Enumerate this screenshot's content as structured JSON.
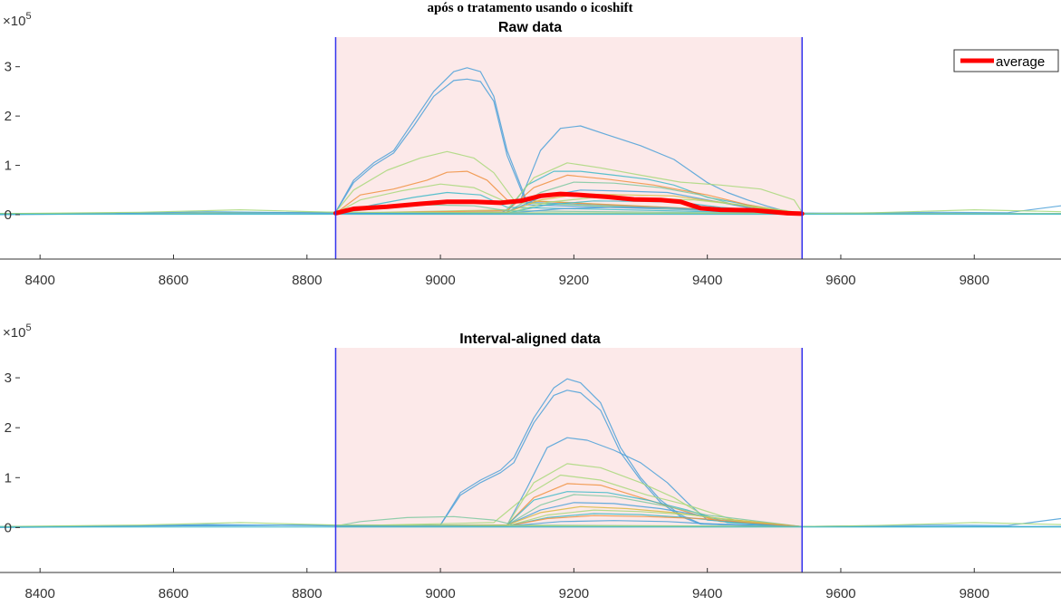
{
  "figure": {
    "suptitle": "após o tratamento usando o icoshift"
  },
  "chart_data": [
    {
      "type": "line",
      "title": "Raw data",
      "xlabel": "",
      "ylabel": "",
      "exponent_base": "×10",
      "exponent_power": "5",
      "xlim": [
        8340,
        9930
      ],
      "ylim": [
        -0.9,
        3.6
      ],
      "xticks": [
        8400,
        8600,
        8800,
        9000,
        9200,
        9400,
        9600,
        9800
      ],
      "yticks": [
        0,
        1,
        2,
        3
      ],
      "highlight_interval": [
        8843,
        9542
      ],
      "legend": {
        "position": "top-right",
        "entries": [
          "average"
        ]
      },
      "series": [
        {
          "name": "average",
          "color": "#ff0000",
          "x": [
            8843,
            8870,
            8920,
            8970,
            9010,
            9050,
            9090,
            9120,
            9150,
            9180,
            9210,
            9250,
            9290,
            9330,
            9360,
            9390,
            9420,
            9470,
            9520,
            9542
          ],
          "y": [
            0.03,
            0.12,
            0.16,
            0.22,
            0.26,
            0.26,
            0.24,
            0.28,
            0.38,
            0.42,
            0.4,
            0.36,
            0.31,
            0.3,
            0.26,
            0.13,
            0.1,
            0.09,
            0.03,
            0.02
          ]
        },
        {
          "color": "#4aa0d8",
          "x": [
            8340,
            8843,
            8870,
            8900,
            8930,
            8960,
            8990,
            9020,
            9040,
            9060,
            9080,
            9100,
            9130,
            9542,
            9930
          ],
          "y": [
            0.02,
            0.05,
            0.7,
            1.05,
            1.3,
            1.9,
            2.5,
            2.9,
            2.98,
            2.9,
            2.4,
            1.3,
            0.25,
            0.03,
            0.02
          ]
        },
        {
          "color": "#4aa0d8",
          "x": [
            8340,
            8843,
            8870,
            8900,
            8930,
            8960,
            8990,
            9020,
            9040,
            9060,
            9080,
            9100,
            9130,
            9542,
            9930
          ],
          "y": [
            0.02,
            0.05,
            0.65,
            1.0,
            1.25,
            1.8,
            2.4,
            2.72,
            2.75,
            2.7,
            2.3,
            1.2,
            0.2,
            0.03,
            0.02
          ]
        },
        {
          "color": "#4aa0d8",
          "x": [
            8340,
            8843,
            9090,
            9120,
            9150,
            9180,
            9210,
            9250,
            9300,
            9350,
            9400,
            9430,
            9460,
            9490,
            9520,
            9542,
            9930
          ],
          "y": [
            0.02,
            0.02,
            0.02,
            0.3,
            1.3,
            1.75,
            1.8,
            1.62,
            1.4,
            1.12,
            0.65,
            0.45,
            0.3,
            0.17,
            0.06,
            0.02,
            0.02
          ]
        },
        {
          "color": "#a8d87a",
          "x": [
            8340,
            8843,
            8870,
            8920,
            8970,
            9010,
            9050,
            9080,
            9110,
            9542,
            9930
          ],
          "y": [
            0.02,
            0.05,
            0.5,
            0.9,
            1.15,
            1.28,
            1.15,
            0.85,
            0.3,
            0.02,
            0.02
          ]
        },
        {
          "color": "#f09040",
          "x": [
            8843,
            8880,
            8930,
            8980,
            9010,
            9040,
            9070,
            9100,
            9542
          ],
          "y": [
            0.03,
            0.4,
            0.52,
            0.7,
            0.86,
            0.88,
            0.7,
            0.3,
            0.02
          ]
        },
        {
          "color": "#3cb8c8",
          "x": [
            8843,
            9100,
            9130,
            9170,
            9210,
            9260,
            9310,
            9350,
            9400,
            9480,
            9542
          ],
          "y": [
            0.03,
            0.05,
            0.6,
            0.88,
            0.88,
            0.8,
            0.72,
            0.6,
            0.35,
            0.15,
            0.02
          ]
        },
        {
          "color": "#a8d87a",
          "x": [
            8843,
            9100,
            9140,
            9190,
            9240,
            9300,
            9360,
            9420,
            9480,
            9530,
            9542
          ],
          "y": [
            0.03,
            0.1,
            0.75,
            1.05,
            0.95,
            0.8,
            0.66,
            0.6,
            0.52,
            0.3,
            0.05
          ]
        },
        {
          "color": "#f09040",
          "x": [
            8843,
            9100,
            9140,
            9190,
            9250,
            9320,
            9400,
            9460,
            9542
          ],
          "y": [
            0.03,
            0.08,
            0.55,
            0.8,
            0.72,
            0.6,
            0.4,
            0.2,
            0.02
          ]
        },
        {
          "color": "#7cc8a0",
          "x": [
            8843,
            9100,
            9150,
            9200,
            9260,
            9330,
            9390,
            9440,
            9542
          ],
          "y": [
            0.03,
            0.05,
            0.45,
            0.66,
            0.64,
            0.55,
            0.4,
            0.2,
            0.02
          ]
        },
        {
          "color": "#a8d87a",
          "x": [
            8843,
            8880,
            8940,
            9000,
            9050,
            9100,
            9542
          ],
          "y": [
            0.03,
            0.3,
            0.48,
            0.62,
            0.55,
            0.25,
            0.02
          ]
        },
        {
          "color": "#3cb8c8",
          "x": [
            8843,
            8900,
            8960,
            9010,
            9060,
            9100,
            9542
          ],
          "y": [
            0.03,
            0.2,
            0.35,
            0.45,
            0.4,
            0.15,
            0.02
          ]
        },
        {
          "color": "#4aa0d8",
          "x": [
            8843,
            9100,
            9150,
            9210,
            9270,
            9340,
            9400,
            9470,
            9542
          ],
          "y": [
            0.03,
            0.05,
            0.35,
            0.5,
            0.48,
            0.45,
            0.3,
            0.12,
            0.02
          ]
        },
        {
          "color": "#d8b840",
          "x": [
            8843,
            9100,
            9150,
            9210,
            9280,
            9350,
            9420,
            9500,
            9542
          ],
          "y": [
            0.03,
            0.05,
            0.3,
            0.42,
            0.4,
            0.38,
            0.25,
            0.1,
            0.02
          ]
        },
        {
          "color": "#a8d87a",
          "x": [
            8843,
            9100,
            9160,
            9230,
            9300,
            9380,
            9450,
            9520,
            9542
          ],
          "y": [
            0.03,
            0.03,
            0.25,
            0.35,
            0.33,
            0.3,
            0.2,
            0.08,
            0.02
          ]
        },
        {
          "color": "#3cb8c8",
          "x": [
            8843,
            9100,
            9160,
            9230,
            9300,
            9360,
            9420,
            9542
          ],
          "y": [
            0.03,
            0.03,
            0.2,
            0.28,
            0.27,
            0.25,
            0.15,
            0.02
          ]
        },
        {
          "color": "#7cc8a0",
          "x": [
            8843,
            8900,
            8980,
            9050,
            9100,
            9542
          ],
          "y": [
            0.03,
            0.12,
            0.2,
            0.18,
            0.08,
            0.02
          ]
        },
        {
          "color": "#4aa0d8",
          "x": [
            8843,
            9100,
            9180,
            9260,
            9340,
            9420,
            9542
          ],
          "y": [
            0.03,
            0.03,
            0.12,
            0.15,
            0.14,
            0.08,
            0.02
          ]
        },
        {
          "color": "#4aa0d8",
          "x": [
            8340,
            8500,
            8650,
            8800,
            8843,
            9542,
            9600,
            9750,
            9850,
            9930
          ],
          "y": [
            0.0,
            0.02,
            0.06,
            0.04,
            0.03,
            0.02,
            0.03,
            0.05,
            0.04,
            0.18
          ]
        },
        {
          "color": "#a8d87a",
          "x": [
            8340,
            8550,
            8700,
            8843,
            9542,
            9650,
            9800,
            9930
          ],
          "y": [
            0.02,
            0.05,
            0.1,
            0.05,
            0.02,
            0.04,
            0.1,
            0.06
          ]
        },
        {
          "color": "#3cb8c8",
          "x": [
            8340,
            8843,
            9542,
            9930
          ],
          "y": [
            0.01,
            0.01,
            0.01,
            0.01
          ]
        }
      ]
    },
    {
      "type": "line",
      "title": "Interval-aligned data",
      "xlabel": "",
      "ylabel": "",
      "exponent_base": "×10",
      "exponent_power": "5",
      "xlim": [
        8340,
        9930
      ],
      "ylim": [
        -0.9,
        3.6
      ],
      "xticks": [
        8400,
        8600,
        8800,
        9000,
        9200,
        9400,
        9600,
        9800
      ],
      "yticks": [
        0,
        1,
        2,
        3
      ],
      "highlight_interval": [
        8843,
        9542
      ],
      "series": [
        {
          "color": "#4aa0d8",
          "x": [
            8340,
            8843,
            9000,
            9030,
            9060,
            9090,
            9110,
            9140,
            9170,
            9190,
            9210,
            9240,
            9270,
            9300,
            9330,
            9360,
            9390,
            9542,
            9930
          ],
          "y": [
            0.02,
            0.05,
            0.05,
            0.7,
            0.95,
            1.15,
            1.4,
            2.2,
            2.8,
            2.98,
            2.9,
            2.5,
            1.6,
            1.0,
            0.55,
            0.25,
            0.08,
            0.02,
            0.02
          ]
        },
        {
          "color": "#4aa0d8",
          "x": [
            8340,
            8843,
            9000,
            9030,
            9060,
            9090,
            9110,
            9140,
            9170,
            9190,
            9210,
            9240,
            9270,
            9300,
            9330,
            9360,
            9390,
            9542,
            9930
          ],
          "y": [
            0.02,
            0.05,
            0.05,
            0.65,
            0.9,
            1.1,
            1.3,
            2.1,
            2.65,
            2.75,
            2.7,
            2.35,
            1.5,
            0.95,
            0.5,
            0.22,
            0.07,
            0.02,
            0.02
          ]
        },
        {
          "color": "#4aa0d8",
          "x": [
            8843,
            9100,
            9130,
            9160,
            9190,
            9220,
            9260,
            9300,
            9340,
            9370,
            9400,
            9542
          ],
          "y": [
            0.03,
            0.05,
            0.8,
            1.6,
            1.8,
            1.75,
            1.55,
            1.3,
            0.9,
            0.5,
            0.15,
            0.02
          ]
        },
        {
          "color": "#a8d87a",
          "x": [
            8843,
            9100,
            9140,
            9190,
            9240,
            9300,
            9350,
            9400,
            9542
          ],
          "y": [
            0.03,
            0.05,
            0.9,
            1.28,
            1.2,
            0.9,
            0.6,
            0.2,
            0.02
          ]
        },
        {
          "color": "#f09040",
          "x": [
            8843,
            9100,
            9140,
            9190,
            9240,
            9300,
            9360,
            9420,
            9542
          ],
          "y": [
            0.03,
            0.05,
            0.6,
            0.88,
            0.85,
            0.6,
            0.35,
            0.12,
            0.02
          ]
        },
        {
          "color": "#3cb8c8",
          "x": [
            8843,
            9100,
            9140,
            9190,
            9250,
            9310,
            9370,
            9430,
            9542
          ],
          "y": [
            0.03,
            0.05,
            0.55,
            0.72,
            0.7,
            0.55,
            0.35,
            0.1,
            0.02
          ]
        },
        {
          "color": "#a8d87a",
          "x": [
            8843,
            9080,
            9130,
            9180,
            9240,
            9310,
            9370,
            9440,
            9542
          ],
          "y": [
            0.03,
            0.1,
            0.65,
            1.05,
            0.95,
            0.65,
            0.45,
            0.15,
            0.02
          ]
        },
        {
          "color": "#7cc8a0",
          "x": [
            8843,
            9100,
            9150,
            9200,
            9260,
            9330,
            9400,
            9542
          ],
          "y": [
            0.03,
            0.05,
            0.45,
            0.66,
            0.62,
            0.45,
            0.25,
            0.02
          ]
        },
        {
          "color": "#4aa0d8",
          "x": [
            8843,
            9100,
            9150,
            9200,
            9260,
            9330,
            9400,
            9460,
            9542
          ],
          "y": [
            0.03,
            0.05,
            0.35,
            0.5,
            0.48,
            0.38,
            0.22,
            0.08,
            0.02
          ]
        },
        {
          "color": "#d8b840",
          "x": [
            8843,
            9100,
            9150,
            9210,
            9280,
            9350,
            9420,
            9542
          ],
          "y": [
            0.03,
            0.05,
            0.3,
            0.42,
            0.38,
            0.3,
            0.18,
            0.02
          ]
        },
        {
          "color": "#a8d87a",
          "x": [
            8843,
            9100,
            9160,
            9230,
            9300,
            9380,
            9450,
            9542
          ],
          "y": [
            0.03,
            0.03,
            0.25,
            0.35,
            0.32,
            0.25,
            0.12,
            0.02
          ]
        },
        {
          "color": "#3cb8c8",
          "x": [
            8843,
            9100,
            9160,
            9230,
            9300,
            9370,
            9440,
            9542
          ],
          "y": [
            0.03,
            0.03,
            0.2,
            0.28,
            0.26,
            0.2,
            0.1,
            0.02
          ]
        },
        {
          "color": "#f09040",
          "x": [
            8843,
            9100,
            9160,
            9230,
            9310,
            9390,
            9460,
            9542
          ],
          "y": [
            0.03,
            0.03,
            0.18,
            0.24,
            0.22,
            0.18,
            0.1,
            0.02
          ]
        },
        {
          "color": "#7cc8a0",
          "x": [
            8843,
            8880,
            8950,
            9020,
            9080,
            9110,
            9542
          ],
          "y": [
            0.03,
            0.12,
            0.2,
            0.22,
            0.15,
            0.05,
            0.02
          ]
        },
        {
          "color": "#4aa0d8",
          "x": [
            8843,
            9100,
            9180,
            9260,
            9340,
            9420,
            9542
          ],
          "y": [
            0.03,
            0.03,
            0.12,
            0.14,
            0.12,
            0.06,
            0.02
          ]
        },
        {
          "color": "#4aa0d8",
          "x": [
            8340,
            8500,
            8650,
            8800,
            8843,
            9542,
            9600,
            9750,
            9850,
            9930
          ],
          "y": [
            0.0,
            0.02,
            0.06,
            0.04,
            0.03,
            0.02,
            0.03,
            0.05,
            0.04,
            0.18
          ]
        },
        {
          "color": "#a8d87a",
          "x": [
            8340,
            8550,
            8700,
            8843,
            9542,
            9650,
            9800,
            9930
          ],
          "y": [
            0.02,
            0.05,
            0.1,
            0.05,
            0.02,
            0.04,
            0.1,
            0.06
          ]
        },
        {
          "color": "#3cb8c8",
          "x": [
            8340,
            8843,
            9542,
            9930
          ],
          "y": [
            0.01,
            0.01,
            0.01,
            0.01
          ]
        }
      ]
    }
  ]
}
